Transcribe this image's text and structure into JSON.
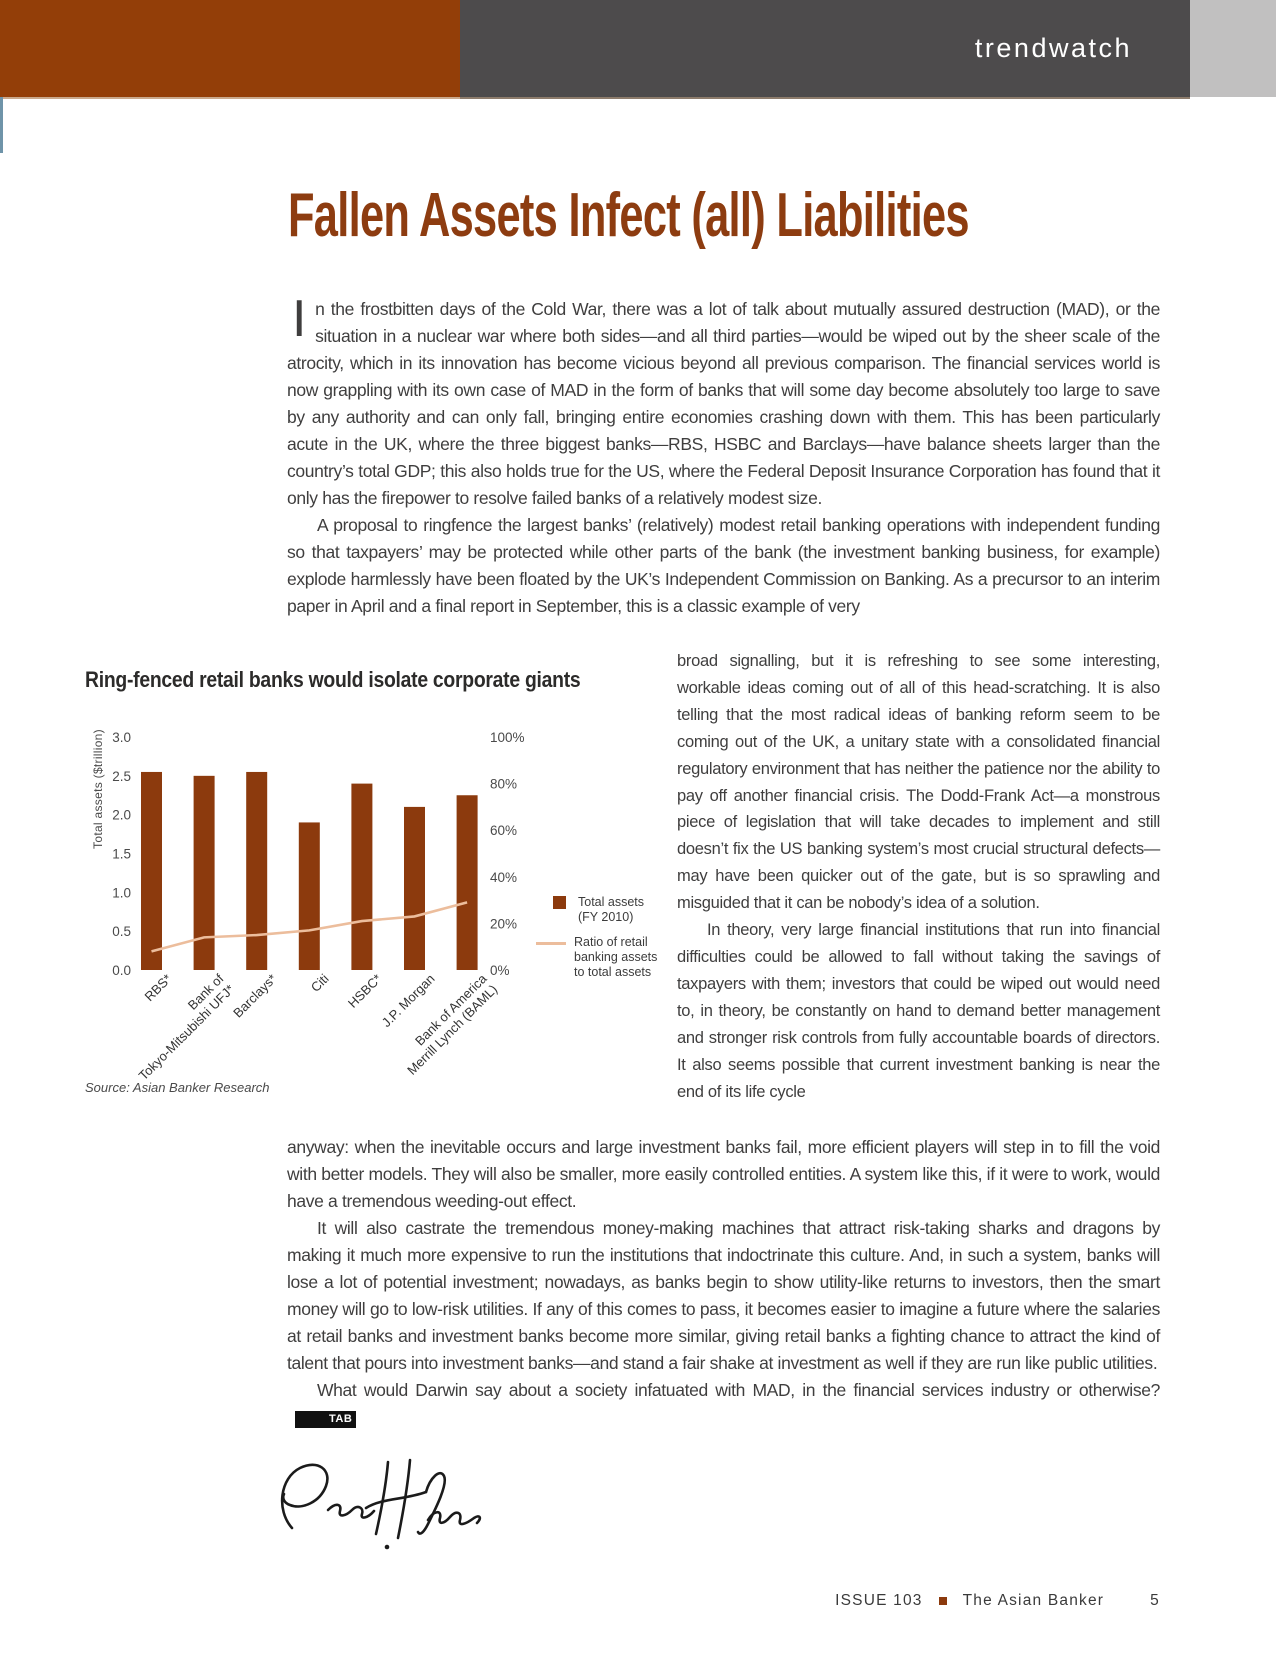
{
  "header": {
    "section_label": "trendwatch"
  },
  "article": {
    "title": "Fallen Assets Infect (all) Liabilities",
    "drop_cap": "I",
    "para1": "n the frostbitten days of the Cold War, there was a lot of talk about mutually assured destruction (MAD), or the situation in a nuclear war where both sides—and all third parties—would be wiped out by the sheer scale of the atrocity, which in its innovation has become vicious beyond all previous comparison. The financial services world is now grappling with its own case of MAD in the form of banks that will some day become absolutely too large to save by any authority and can only fall, bringing entire economies crashing down with them. This has been particularly acute in the UK, where the three biggest banks—RBS, HSBC and Barclays—have balance sheets larger than the country’s total GDP; this also holds true for the US, where the Federal Deposit Insurance Corporation has found that it only has the firepower to resolve failed banks of a relatively modest size.",
    "para2_full": "A proposal to ringfence the largest banks’ (relatively) modest retail banking operations with independent funding so that taxpayers’ may be protected while other parts of the bank (the investment banking business, for example) explode harmlessly have been floated by the UK’s Independent Commission on Banking. As a precursor to an interim paper in April and a final report in September, this is a classic example of very",
    "para2_wrap": "broad signalling, but it is refreshing to see some interesting, workable ideas coming out of all of this head-scratching. It is also telling that the most radical ideas of banking reform seem to be coming out of the UK, a unitary state with a consolidated financial regulatory environment that has neither the patience nor the ability to pay off another financial crisis. The Dodd-Frank Act—a monstrous piece of legislation that will take decades to implement and still doesn’t fix the US banking system’s most crucial structural defects—may have been quicker out of the gate, but is so sprawling and misguided that it can be nobody’s idea of a solution.",
    "para3_wrap": "In theory, very large financial institutions that run into financial difficulties could be allowed to fall without taking the savings of taxpayers with them; investors that could be wiped out would need to, in theory, be constantly on hand to demand better management and stronger risk controls from fully accountable boards of directors. It also seems possible that current investment banking is near the end of its life cycle",
    "para3_full": "anyway: when the inevitable occurs and large investment banks fail, more efficient players will step in to fill the void with better models. They will also be smaller, more easily controlled entities. A system like this, if it were to work, would have a tremendous weeding-out effect.",
    "para4": "It will also castrate the tremendous money-making machines that attract risk-taking sharks and dragons by making it much more expensive to run the institutions that indoctrinate this culture. And, in such a system, banks will lose a lot of potential investment; nowadays, as banks begin to show utility-like returns to investors, then the smart money will go to low-risk utilities. If any of this comes to pass, it becomes easier to imagine a future where the salaries at retail banks and investment banks become more similar, giving retail banks a fighting chance to attract the kind of talent that pours into investment banks—and stand a fair shake at investment as well if they are run like public utilities.",
    "para5": "What would Darwin say about a society infatuated with MAD, in the financial services industry or otherwise?",
    "end_badge": "TAB"
  },
  "chart_data": {
    "type": "bar",
    "title": "Ring-fenced retail banks would isolate corporate giants",
    "categories": [
      "RBS*",
      "Bank of\nTokyo-Mitsubishi UFJ*",
      "Barclays*",
      "Citi",
      "HSBC*",
      "J.P. Morgan",
      "Bank of America\nMerrill Lynch (BAML)"
    ],
    "series": [
      {
        "name": "Total assets (FY 2010)",
        "type": "bar",
        "axis": "left",
        "values": [
          2.55,
          2.5,
          2.55,
          1.9,
          2.4,
          2.1,
          2.25
        ]
      },
      {
        "name": "Ratio of retail banking assets to total assets",
        "type": "line",
        "axis": "right",
        "values": [
          8,
          14,
          15,
          17,
          21,
          23,
          29
        ]
      }
    ],
    "legend": [
      "Total assets\n(FY 2010)",
      "Ratio of retail\nbanking assets\nto total assets"
    ],
    "ylabel_left": "Total assets ($trillion)",
    "left_ticks": [
      "3.0",
      "2.5",
      "2.0",
      "1.5",
      "1.0",
      "0.5",
      "0.0"
    ],
    "right_ticks": [
      "100%",
      "80%",
      "60%",
      "40%",
      "20%",
      "0%"
    ],
    "ylim_left": [
      0,
      3.0
    ],
    "ylim_right": [
      0,
      100
    ],
    "grid": false,
    "legend_position": "right",
    "source": "Source: Asian Banker Research",
    "bar_color": "#8c3a0d",
    "line_color": "#ecbd9c"
  },
  "footer": {
    "issue": "ISSUE 103",
    "publication": "The Asian Banker",
    "page": "5"
  },
  "colors": {
    "masthead_brown": "#933e08",
    "masthead_gray": "#4d4b4c",
    "masthead_light_gray": "#c1c0c0",
    "accent_blue": "#6f94a9",
    "title_brown": "#8d3c10",
    "badge_black": "#111111"
  }
}
